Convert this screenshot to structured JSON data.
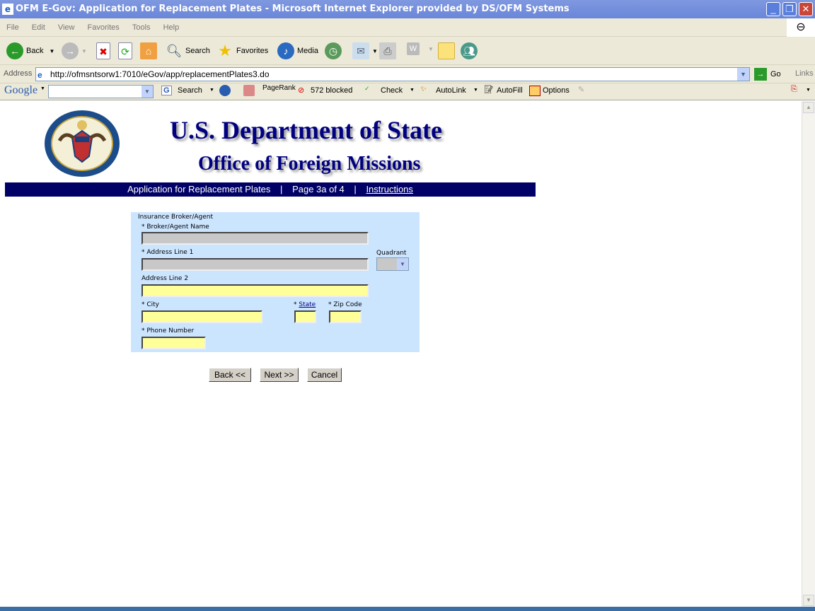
{
  "window": {
    "title": "OFM E-Gov: Application for Replacement Plates - Microsoft Internet Explorer provided by DS/OFM Systems"
  },
  "menu": [
    "File",
    "Edit",
    "View",
    "Favorites",
    "Tools",
    "Help"
  ],
  "toolbar": {
    "back": "Back",
    "search": "Search",
    "favorites": "Favorites",
    "media": "Media"
  },
  "address": {
    "label": "Address",
    "url": "http://ofmsntsorw1:7010/eGov/app/replacementPlates3.do",
    "go": "Go",
    "links": "Links"
  },
  "google_bar": {
    "logo": "Google",
    "search": "Search",
    "pagerank": "PageRank",
    "blocked": "572 blocked",
    "check": "Check",
    "autolink": "AutoLink",
    "autofill": "AutoFill",
    "options": "Options"
  },
  "header": {
    "seal_text": "DEPARTMENT OF STATE · UNITED STATES OF AMERICA",
    "title": "U.S. Department of State",
    "subtitle": "Office of Foreign Missions"
  },
  "nav": {
    "app": "Application for Replacement Plates",
    "sep": "|",
    "page": "Page 3a of 4",
    "instructions": "Instructions"
  },
  "form": {
    "section": "Insurance Broker/Agent",
    "broker_name": "* Broker/Agent Name",
    "address1": "* Address Line 1",
    "quadrant": "Quadrant",
    "address2": "Address Line 2",
    "city": "* City",
    "state_prefix": "* ",
    "state": "State",
    "zip": "* Zip Code",
    "phone": "* Phone Number"
  },
  "buttons": {
    "back": "Back <<",
    "next": "Next >>",
    "cancel": "Cancel"
  },
  "colors": {
    "nav_bg": "#000066",
    "form_bg": "#cce5ff",
    "required_field": "#ffff99",
    "disabled_field": "#c8c8c8"
  }
}
